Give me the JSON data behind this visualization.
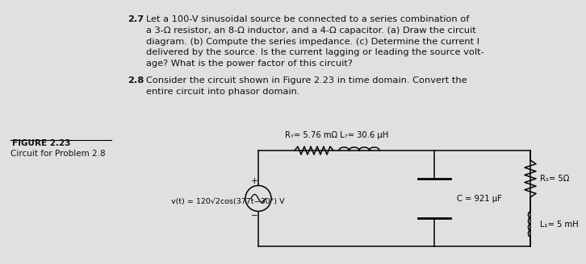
{
  "bg_color": "#e0e0e0",
  "text_color": "#111111",
  "prob_27_num": "2.7",
  "prob_27_text_lines": [
    "Let a 100-V sinusoidal source be connected to a series combination of",
    "a 3-Ω resistor, an 8-Ω inductor, and a 4-Ω capacitor. (a) Draw the circuit",
    "diagram. (b) Compute the series impedance. (c) Determine the current I",
    "delivered by the source. Is the current lagging or leading the source volt-",
    "age? What is the power factor of this circuit?"
  ],
  "prob_28_num": "2.8",
  "prob_28_text_lines": [
    "Consider the circuit shown in Figure 2.23 in time domain. Convert the",
    "entire circuit into phasor domain."
  ],
  "figure_label": "FIGURE 2.23",
  "figure_caption": "Circuit for Problem 2.8",
  "rt_label": "R₇= 5.76 mΩ L₇= 30.6 μH",
  "vs_label": "v(t) = 120√2cos(377t−30°) V",
  "c_label": "C = 921 μF",
  "rl_label": "R₁= 5Ω",
  "ll_label": "L₁= 5 mH",
  "plus_sign": "+",
  "minus_sign": "−"
}
